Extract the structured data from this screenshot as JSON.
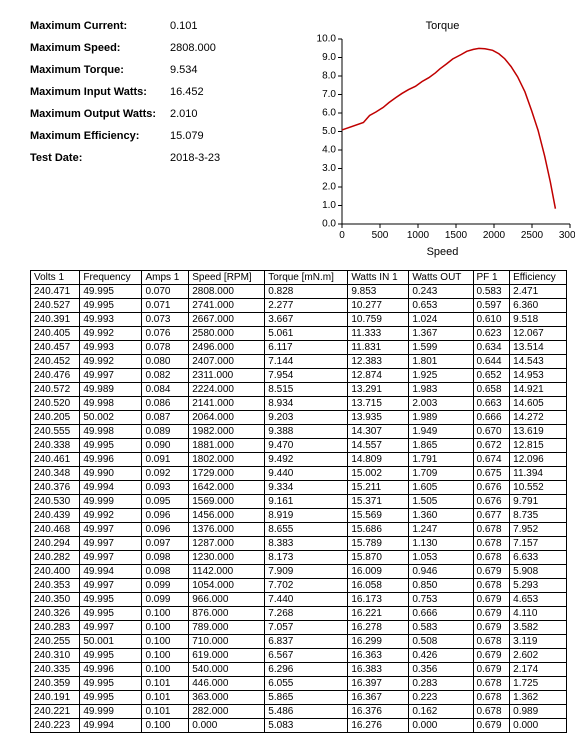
{
  "summary": [
    {
      "label": "Maximum Current:",
      "value": "0.101"
    },
    {
      "label": "Maximum Speed:",
      "value": "2808.000"
    },
    {
      "label": "Maximum Torque:",
      "value": "9.534"
    },
    {
      "label": "Maximum Input Watts:",
      "value": "16.452"
    },
    {
      "label": "Maximum Output Watts:",
      "value": "2.010"
    },
    {
      "label": "Maximum Efficiency:",
      "value": "15.079"
    },
    {
      "label": "Test Date:",
      "value": "2018-3-23"
    }
  ],
  "chart": {
    "title": "Torque",
    "xlabel": "Speed",
    "xlim": [
      0,
      3000
    ],
    "ylim": [
      0,
      10
    ],
    "xtick_step": 500,
    "ytick_step": 1,
    "line_color": "#c00000",
    "axis_color": "#000000",
    "tick_font_size": 10,
    "points": [
      [
        0,
        5.083
      ],
      [
        282,
        5.486
      ],
      [
        363,
        5.865
      ],
      [
        446,
        6.055
      ],
      [
        540,
        6.296
      ],
      [
        619,
        6.567
      ],
      [
        710,
        6.837
      ],
      [
        789,
        7.057
      ],
      [
        876,
        7.268
      ],
      [
        966,
        7.44
      ],
      [
        1054,
        7.702
      ],
      [
        1142,
        7.909
      ],
      [
        1230,
        8.173
      ],
      [
        1287,
        8.383
      ],
      [
        1376,
        8.655
      ],
      [
        1456,
        8.919
      ],
      [
        1569,
        9.161
      ],
      [
        1642,
        9.334
      ],
      [
        1729,
        9.44
      ],
      [
        1802,
        9.492
      ],
      [
        1881,
        9.47
      ],
      [
        1982,
        9.388
      ],
      [
        2064,
        9.203
      ],
      [
        2141,
        8.934
      ],
      [
        2224,
        8.515
      ],
      [
        2311,
        7.954
      ],
      [
        2407,
        7.144
      ],
      [
        2496,
        6.117
      ],
      [
        2580,
        5.061
      ],
      [
        2667,
        3.667
      ],
      [
        2741,
        2.277
      ],
      [
        2808,
        0.828
      ]
    ]
  },
  "table": {
    "columns": [
      "Volts 1",
      "Frequency",
      "Amps 1",
      "Speed [RPM]",
      "Torque [mN.m]",
      "Watts IN 1",
      "Watts OUT",
      "PF 1",
      "Efficiency"
    ],
    "rows": [
      [
        "240.471",
        "49.995",
        "0.070",
        "2808.000",
        "0.828",
        "9.853",
        "0.243",
        "0.583",
        "2.471"
      ],
      [
        "240.527",
        "49.995",
        "0.071",
        "2741.000",
        "2.277",
        "10.277",
        "0.653",
        "0.597",
        "6.360"
      ],
      [
        "240.391",
        "49.993",
        "0.073",
        "2667.000",
        "3.667",
        "10.759",
        "1.024",
        "0.610",
        "9.518"
      ],
      [
        "240.405",
        "49.992",
        "0.076",
        "2580.000",
        "5.061",
        "11.333",
        "1.367",
        "0.623",
        "12.067"
      ],
      [
        "240.457",
        "49.993",
        "0.078",
        "2496.000",
        "6.117",
        "11.831",
        "1.599",
        "0.634",
        "13.514"
      ],
      [
        "240.452",
        "49.992",
        "0.080",
        "2407.000",
        "7.144",
        "12.383",
        "1.801",
        "0.644",
        "14.543"
      ],
      [
        "240.476",
        "49.997",
        "0.082",
        "2311.000",
        "7.954",
        "12.874",
        "1.925",
        "0.652",
        "14.953"
      ],
      [
        "240.572",
        "49.989",
        "0.084",
        "2224.000",
        "8.515",
        "13.291",
        "1.983",
        "0.658",
        "14.921"
      ],
      [
        "240.520",
        "49.998",
        "0.086",
        "2141.000",
        "8.934",
        "13.715",
        "2.003",
        "0.663",
        "14.605"
      ],
      [
        "240.205",
        "50.002",
        "0.087",
        "2064.000",
        "9.203",
        "13.935",
        "1.989",
        "0.666",
        "14.272"
      ],
      [
        "240.555",
        "49.998",
        "0.089",
        "1982.000",
        "9.388",
        "14.307",
        "1.949",
        "0.670",
        "13.619"
      ],
      [
        "240.338",
        "49.995",
        "0.090",
        "1881.000",
        "9.470",
        "14.557",
        "1.865",
        "0.672",
        "12.815"
      ],
      [
        "240.461",
        "49.996",
        "0.091",
        "1802.000",
        "9.492",
        "14.809",
        "1.791",
        "0.674",
        "12.096"
      ],
      [
        "240.348",
        "49.990",
        "0.092",
        "1729.000",
        "9.440",
        "15.002",
        "1.709",
        "0.675",
        "11.394"
      ],
      [
        "240.376",
        "49.994",
        "0.093",
        "1642.000",
        "9.334",
        "15.211",
        "1.605",
        "0.676",
        "10.552"
      ],
      [
        "240.530",
        "49.999",
        "0.095",
        "1569.000",
        "9.161",
        "15.371",
        "1.505",
        "0.676",
        "9.791"
      ],
      [
        "240.439",
        "49.992",
        "0.096",
        "1456.000",
        "8.919",
        "15.569",
        "1.360",
        "0.677",
        "8.735"
      ],
      [
        "240.468",
        "49.997",
        "0.096",
        "1376.000",
        "8.655",
        "15.686",
        "1.247",
        "0.678",
        "7.952"
      ],
      [
        "240.294",
        "49.997",
        "0.097",
        "1287.000",
        "8.383",
        "15.789",
        "1.130",
        "0.678",
        "7.157"
      ],
      [
        "240.282",
        "49.997",
        "0.098",
        "1230.000",
        "8.173",
        "15.870",
        "1.053",
        "0.678",
        "6.633"
      ],
      [
        "240.400",
        "49.994",
        "0.098",
        "1142.000",
        "7.909",
        "16.009",
        "0.946",
        "0.679",
        "5.908"
      ],
      [
        "240.353",
        "49.997",
        "0.099",
        "1054.000",
        "7.702",
        "16.058",
        "0.850",
        "0.678",
        "5.293"
      ],
      [
        "240.350",
        "49.995",
        "0.099",
        "966.000",
        "7.440",
        "16.173",
        "0.753",
        "0.679",
        "4.653"
      ],
      [
        "240.326",
        "49.995",
        "0.100",
        "876.000",
        "7.268",
        "16.221",
        "0.666",
        "0.679",
        "4.110"
      ],
      [
        "240.283",
        "49.997",
        "0.100",
        "789.000",
        "7.057",
        "16.278",
        "0.583",
        "0.679",
        "3.582"
      ],
      [
        "240.255",
        "50.001",
        "0.100",
        "710.000",
        "6.837",
        "16.299",
        "0.508",
        "0.678",
        "3.119"
      ],
      [
        "240.310",
        "49.995",
        "0.100",
        "619.000",
        "6.567",
        "16.363",
        "0.426",
        "0.679",
        "2.602"
      ],
      [
        "240.335",
        "49.996",
        "0.100",
        "540.000",
        "6.296",
        "16.383",
        "0.356",
        "0.679",
        "2.174"
      ],
      [
        "240.359",
        "49.995",
        "0.101",
        "446.000",
        "6.055",
        "16.397",
        "0.283",
        "0.678",
        "1.725"
      ],
      [
        "240.191",
        "49.995",
        "0.101",
        "363.000",
        "5.865",
        "16.367",
        "0.223",
        "0.678",
        "1.362"
      ],
      [
        "240.221",
        "49.999",
        "0.101",
        "282.000",
        "5.486",
        "16.376",
        "0.162",
        "0.678",
        "0.989"
      ],
      [
        "240.223",
        "49.994",
        "0.100",
        "0.000",
        "5.083",
        "16.276",
        "0.000",
        "0.679",
        "0.000"
      ]
    ]
  }
}
